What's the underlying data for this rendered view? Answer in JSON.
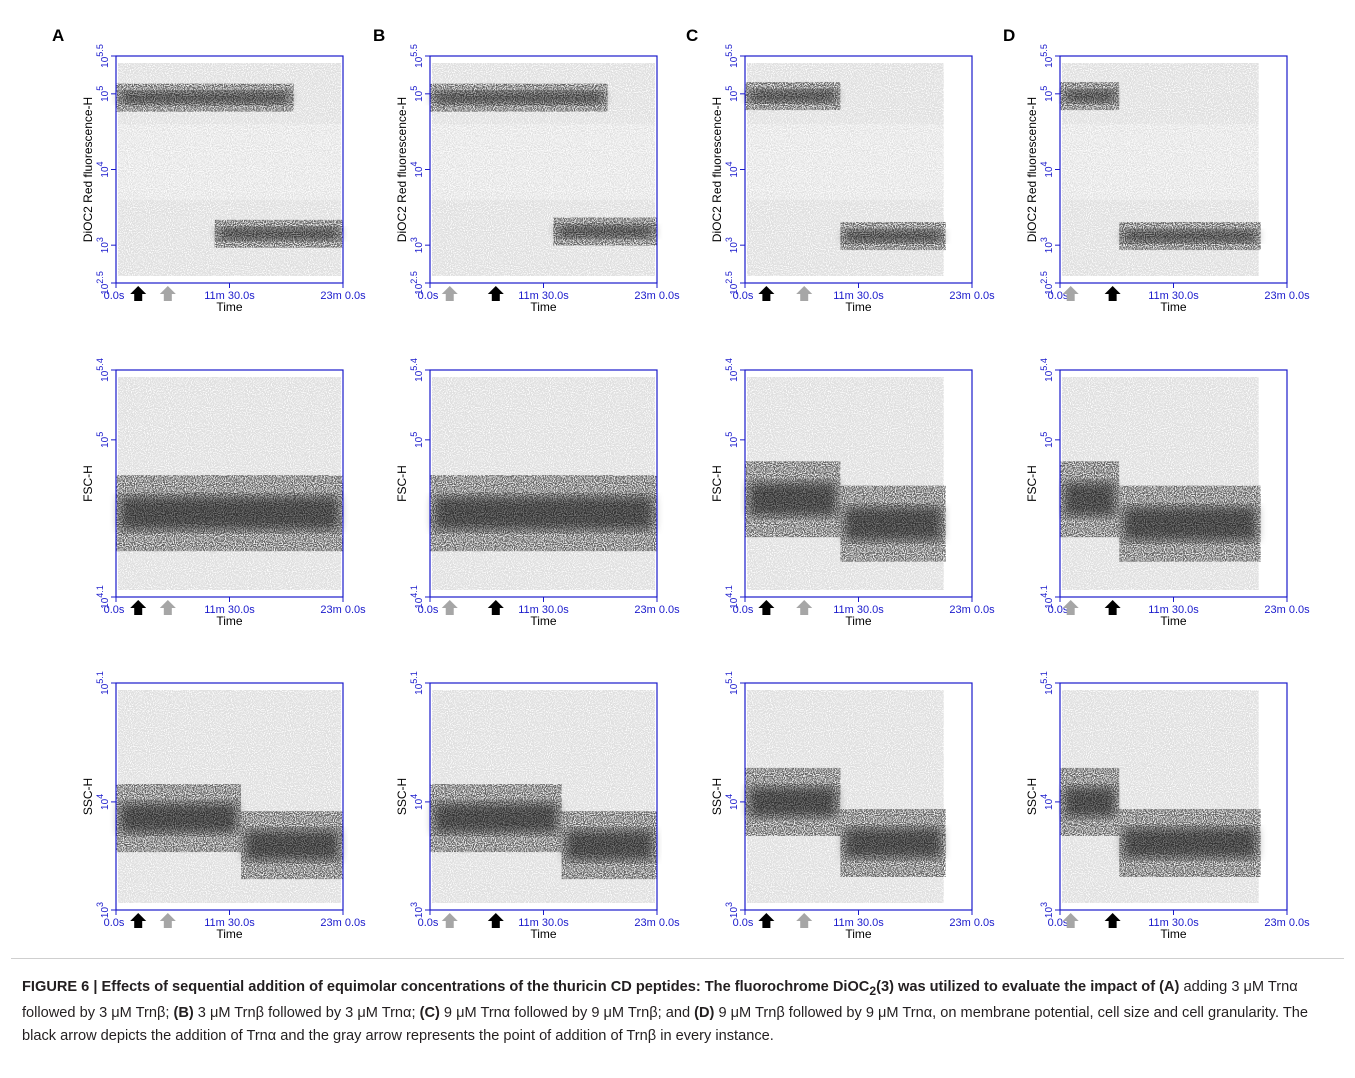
{
  "colors": {
    "axis": "#1a1acc",
    "light_gray": "#bdbdbd",
    "dark": "#111111",
    "arrow_black": "#000000",
    "arrow_gray": "#a6a6a6"
  },
  "panel_labels": [
    "A",
    "B",
    "C",
    "D"
  ],
  "x_axis": {
    "label": "Time",
    "ticks": [
      "0.0s",
      "11m 30.0s",
      "23m 0.0s"
    ]
  },
  "rows": [
    {
      "ylabel": "DiOC2 Red fluorescence-H",
      "y_ticks": [
        "10^2.5",
        "10^3",
        "10^4",
        "10^5",
        "10^5.5"
      ]
    },
    {
      "ylabel": "FSC-H",
      "y_ticks": [
        "10^4.1",
        "10^5",
        "10^5.4"
      ]
    },
    {
      "ylabel": "SSC-H",
      "y_ticks": [
        "10^3",
        "10^4",
        "10^5.1"
      ]
    }
  ],
  "caption": {
    "lead": "FIGURE 6 | Effects of sequential addition of equimolar concentrations of the thuricin CD peptides: The fluorochrome DiOC",
    "lead_sub": "2",
    "lead_tail": "(3) was utilized to evaluate the impact of",
    "a": "(A)",
    "a_text": " adding 3 μM Trnα followed by 3 μM Trnβ; ",
    "b": "(B)",
    "b_text": " 3 μM Trnβ followed by 3 μM Trnα; ",
    "c": "(C)",
    "c_text": " 9 μM Trnα followed by 9 μM Trnβ; and ",
    "d": "(D)",
    "d_text": " 9 μM Trnβ followed by 9 μM Trnα, on membrane potential, cell size and cell granularity. The black arrow depicts the addition of Trnα and the gray arrow represents the point of addition of Trnβ in every instance."
  },
  "chart_data": [
    {
      "panel": "A",
      "metric": "DiOC2 Red fluorescence-H",
      "type": "scatter",
      "xlim": [
        0,
        1380
      ],
      "ylim": [
        2.5,
        5.5
      ],
      "log_scale": true,
      "additions": [
        {
          "agent": "Trnα",
          "arrow": "black",
          "time_s": 135
        },
        {
          "agent": "Trnβ",
          "arrow": "gray",
          "time_s": 315
        }
      ],
      "populations": [
        {
          "x": [
            0,
            1080
          ],
          "y": 4.95,
          "density": "high"
        },
        {
          "x": [
            600,
            1380
          ],
          "y": 3.15,
          "density": "high"
        }
      ]
    },
    {
      "panel": "A",
      "metric": "FSC-H",
      "type": "scatter",
      "xlim": [
        0,
        1380
      ],
      "ylim": [
        4.1,
        5.4
      ],
      "log_scale": true,
      "additions": [
        {
          "agent": "Trnα",
          "arrow": "black",
          "time_s": 135
        },
        {
          "agent": "Trnβ",
          "arrow": "gray",
          "time_s": 315
        }
      ],
      "populations": [
        {
          "x": [
            0,
            1380
          ],
          "y": 4.58,
          "density": "high"
        }
      ]
    },
    {
      "panel": "A",
      "metric": "SSC-H",
      "type": "scatter",
      "xlim": [
        0,
        1380
      ],
      "ylim": [
        3.0,
        5.1
      ],
      "log_scale": true,
      "additions": [
        {
          "agent": "Trnα",
          "arrow": "black",
          "time_s": 135
        },
        {
          "agent": "Trnβ",
          "arrow": "gray",
          "time_s": 315
        }
      ],
      "populations": [
        {
          "x": [
            0,
            760
          ],
          "y": 3.85,
          "density": "high"
        },
        {
          "x": [
            760,
            1380
          ],
          "y": 3.6,
          "density": "high"
        }
      ]
    },
    {
      "panel": "B",
      "metric": "DiOC2 Red fluorescence-H",
      "type": "scatter",
      "xlim": [
        0,
        1380
      ],
      "ylim": [
        2.5,
        5.5
      ],
      "log_scale": true,
      "additions": [
        {
          "agent": "Trnβ",
          "arrow": "gray",
          "time_s": 120
        },
        {
          "agent": "Trnα",
          "arrow": "black",
          "time_s": 400
        }
      ],
      "populations": [
        {
          "x": [
            0,
            1080
          ],
          "y": 4.95,
          "density": "high"
        },
        {
          "x": [
            750,
            1380
          ],
          "y": 3.18,
          "density": "high"
        }
      ]
    },
    {
      "panel": "B",
      "metric": "FSC-H",
      "type": "scatter",
      "xlim": [
        0,
        1380
      ],
      "ylim": [
        4.1,
        5.4
      ],
      "log_scale": true,
      "additions": [
        {
          "agent": "Trnβ",
          "arrow": "gray",
          "time_s": 120
        },
        {
          "agent": "Trnα",
          "arrow": "black",
          "time_s": 400
        }
      ],
      "populations": [
        {
          "x": [
            0,
            1380
          ],
          "y": 4.58,
          "density": "high"
        }
      ]
    },
    {
      "panel": "B",
      "metric": "SSC-H",
      "type": "scatter",
      "xlim": [
        0,
        1380
      ],
      "ylim": [
        3.0,
        5.1
      ],
      "log_scale": true,
      "additions": [
        {
          "agent": "Trnβ",
          "arrow": "gray",
          "time_s": 120
        },
        {
          "agent": "Trnα",
          "arrow": "black",
          "time_s": 400
        }
      ],
      "populations": [
        {
          "x": [
            0,
            800
          ],
          "y": 3.85,
          "density": "high"
        },
        {
          "x": [
            800,
            1380
          ],
          "y": 3.6,
          "density": "high"
        }
      ]
    },
    {
      "panel": "C",
      "metric": "DiOC2 Red fluorescence-H",
      "type": "scatter",
      "xlim": [
        0,
        1380
      ],
      "ylim": [
        2.5,
        5.5
      ],
      "log_scale": true,
      "additions": [
        {
          "agent": "Trnα",
          "arrow": "black",
          "time_s": 130
        },
        {
          "agent": "Trnβ",
          "arrow": "gray",
          "time_s": 360
        }
      ],
      "populations": [
        {
          "x": [
            0,
            580
          ],
          "y": 4.97,
          "density": "high"
        },
        {
          "x": [
            580,
            1220
          ],
          "y": 3.12,
          "density": "high"
        }
      ]
    },
    {
      "panel": "C",
      "metric": "FSC-H",
      "type": "scatter",
      "xlim": [
        0,
        1380
      ],
      "ylim": [
        4.1,
        5.4
      ],
      "log_scale": true,
      "additions": [
        {
          "agent": "Trnα",
          "arrow": "black",
          "time_s": 130
        },
        {
          "agent": "Trnβ",
          "arrow": "gray",
          "time_s": 360
        }
      ],
      "populations": [
        {
          "x": [
            0,
            580
          ],
          "y": 4.66,
          "density": "high"
        },
        {
          "x": [
            580,
            1220
          ],
          "y": 4.52,
          "density": "high"
        }
      ]
    },
    {
      "panel": "C",
      "metric": "SSC-H",
      "type": "scatter",
      "xlim": [
        0,
        1380
      ],
      "ylim": [
        3.0,
        5.1
      ],
      "log_scale": true,
      "additions": [
        {
          "agent": "Trnα",
          "arrow": "black",
          "time_s": 130
        },
        {
          "agent": "Trnβ",
          "arrow": "gray",
          "time_s": 360
        }
      ],
      "populations": [
        {
          "x": [
            0,
            580
          ],
          "y": 4.0,
          "density": "high"
        },
        {
          "x": [
            580,
            1220
          ],
          "y": 3.62,
          "density": "high"
        }
      ]
    },
    {
      "panel": "D",
      "metric": "DiOC2 Red fluorescence-H",
      "type": "scatter",
      "xlim": [
        0,
        1380
      ],
      "ylim": [
        2.5,
        5.5
      ],
      "log_scale": true,
      "additions": [
        {
          "agent": "Trnβ",
          "arrow": "gray",
          "time_s": 65
        },
        {
          "agent": "Trnα",
          "arrow": "black",
          "time_s": 320
        }
      ],
      "populations": [
        {
          "x": [
            0,
            360
          ],
          "y": 4.97,
          "density": "high"
        },
        {
          "x": [
            360,
            1220
          ],
          "y": 3.12,
          "density": "high"
        }
      ]
    },
    {
      "panel": "D",
      "metric": "FSC-H",
      "type": "scatter",
      "xlim": [
        0,
        1380
      ],
      "ylim": [
        4.1,
        5.4
      ],
      "log_scale": true,
      "additions": [
        {
          "agent": "Trnβ",
          "arrow": "gray",
          "time_s": 65
        },
        {
          "agent": "Trnα",
          "arrow": "black",
          "time_s": 320
        }
      ],
      "populations": [
        {
          "x": [
            0,
            360
          ],
          "y": 4.66,
          "density": "high"
        },
        {
          "x": [
            360,
            1220
          ],
          "y": 4.52,
          "density": "high"
        }
      ]
    },
    {
      "panel": "D",
      "metric": "SSC-H",
      "type": "scatter",
      "xlim": [
        0,
        1380
      ],
      "ylim": [
        3.0,
        5.1
      ],
      "log_scale": true,
      "additions": [
        {
          "agent": "Trnβ",
          "arrow": "gray",
          "time_s": 65
        },
        {
          "agent": "Trnα",
          "arrow": "black",
          "time_s": 320
        }
      ],
      "populations": [
        {
          "x": [
            0,
            360
          ],
          "y": 4.0,
          "density": "high"
        },
        {
          "x": [
            360,
            1220
          ],
          "y": 3.62,
          "density": "high"
        }
      ]
    }
  ]
}
